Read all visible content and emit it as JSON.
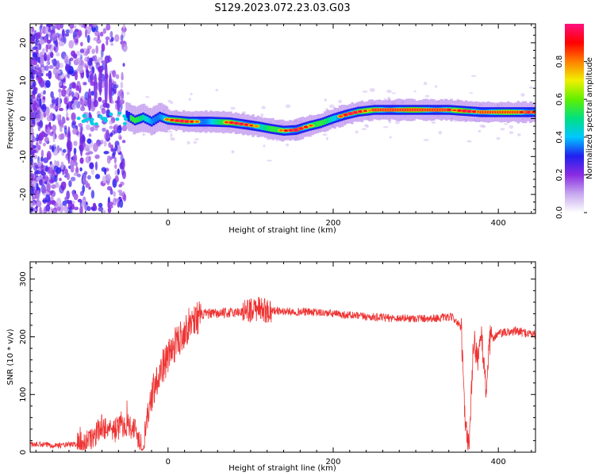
{
  "title": "S129.2023.072.23.03.G03",
  "chart_data": [
    {
      "type": "heatmap",
      "xlabel": "Height of straight line (km)",
      "ylabel": "Frequency (Hz)",
      "xlim": [
        -167,
        445
      ],
      "ylim": [
        -25,
        25
      ],
      "x_ticks": [
        0,
        200,
        400
      ],
      "y_ticks": [
        -20,
        -10,
        0,
        10,
        20
      ],
      "colorbar": {
        "label": "Normalized spectral amplitude",
        "range": [
          0,
          1
        ],
        "ticks": [
          0.0,
          0.2,
          0.4,
          0.6,
          0.8
        ],
        "tick_labels": [
          "0.0",
          "0.2",
          "0.4",
          "0.6",
          "0.8"
        ],
        "colors": [
          "#ffffff",
          "#c6a8ee",
          "#8a2be2",
          "#2020f0",
          "#00c8ff",
          "#00e080",
          "#60f000",
          "#f0f000",
          "#ff8000",
          "#ff0000",
          "#ff1080"
        ]
      },
      "ridge": {
        "x": [
          -60,
          -50,
          -40,
          -30,
          -20,
          -10,
          0,
          25,
          50,
          75,
          95,
          110,
          125,
          140,
          155,
          170,
          185,
          200,
          215,
          230,
          250,
          270,
          300,
          320,
          340,
          360,
          380,
          400,
          420,
          445
        ],
        "y": [
          0.0,
          0.8,
          -0.5,
          0.3,
          -0.8,
          0.5,
          -0.3,
          -0.8,
          -0.8,
          -1.0,
          -1.6,
          -2.1,
          -2.7,
          -3.2,
          -3.0,
          -2.0,
          -1.2,
          0.0,
          1.0,
          1.8,
          2.3,
          2.3,
          2.3,
          2.3,
          2.3,
          2.0,
          1.7,
          1.7,
          1.7,
          1.7
        ]
      }
    },
    {
      "type": "line",
      "xlabel": "Height of straight line (km)",
      "ylabel": "SNR (10 * v/v)",
      "xlim": [
        -167,
        445
      ],
      "ylim": [
        0,
        330
      ],
      "x_ticks": [
        0,
        200,
        400
      ],
      "y_ticks": [
        0,
        100,
        200,
        300
      ],
      "color": "#ee3333",
      "series": [
        {
          "x": [
            -167,
            -150,
            -130,
            -110,
            -95,
            -80,
            -65,
            -50,
            -40,
            -30,
            -25,
            -18,
            -10,
            0,
            10,
            20,
            30,
            45,
            60,
            80,
            100,
            110,
            120,
            140,
            170,
            200,
            230,
            260,
            290,
            320,
            345,
            355,
            360,
            365,
            370,
            375,
            380,
            385,
            390,
            400,
            420,
            445
          ],
          "y": [
            14,
            13,
            12,
            14,
            20,
            45,
            38,
            50,
            40,
            8,
            60,
            110,
            140,
            165,
            190,
            210,
            230,
            240,
            240,
            242,
            246,
            248,
            246,
            244,
            243,
            240,
            236,
            233,
            232,
            232,
            234,
            215,
            40,
            15,
            195,
            165,
            195,
            110,
            195,
            205,
            210,
            204
          ]
        }
      ]
    }
  ]
}
